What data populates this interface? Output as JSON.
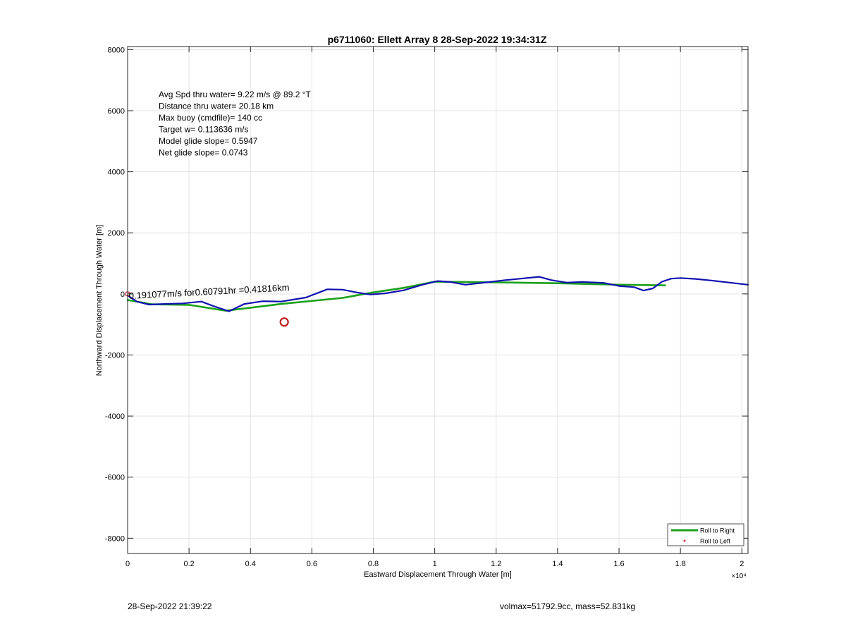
{
  "chart_data": {
    "type": "line",
    "title": "p6711060: Ellett Array 8 28-Sep-2022 19:34:31Z",
    "xlabel": "Eastward Displacement Through Water [m]",
    "ylabel": "Northward Displacement Through Water [m]",
    "xlim": [
      0,
      20200
    ],
    "ylim": [
      -8500,
      8100
    ],
    "x_exponent_label": "×10⁴",
    "x_ticks": [
      0,
      2000,
      4000,
      6000,
      8000,
      10000,
      12000,
      14000,
      16000,
      18000,
      20000
    ],
    "x_tick_labels": [
      "0",
      "0.2",
      "0.4",
      "0.6",
      "0.8",
      "1",
      "1.2",
      "1.4",
      "1.6",
      "1.8",
      "2"
    ],
    "y_ticks": [
      -8000,
      -6000,
      -4000,
      -2000,
      0,
      2000,
      4000,
      6000,
      8000
    ],
    "y_tick_labels": [
      "-8000",
      "-6000",
      "-4000",
      "-2000",
      "0",
      "2000",
      "4000",
      "6000",
      "8000"
    ],
    "grid": true,
    "legend_position": "bottom-right",
    "legend": [
      {
        "label": "Roll to Right",
        "color": "#1aa01a",
        "marker": "line"
      },
      {
        "label": "Roll to Left",
        "color": "#e01010",
        "marker": "dot"
      }
    ],
    "annotations": [
      "Avg Spd thru water=  9.22 m/s @  89.2 °T",
      "Distance thru water= 20.18 km",
      "Max buoy (cmdfile)= 140 cc",
      "Target w= 0.113636 m/s",
      "Model glide slope= 0.5947",
      "Net glide slope= 0.0743"
    ],
    "drift_label": "0.191077m/s for0.60791hr =0.41816km",
    "series": [
      {
        "name": "Roll to Right",
        "color": "#1aa01a",
        "x": [
          0,
          800,
          2000,
          3200,
          5000,
          7000,
          8000,
          9000,
          10000,
          12000,
          14000,
          16000,
          17500
        ],
        "y": [
          -200,
          -340,
          -360,
          -550,
          -330,
          -130,
          50,
          200,
          400,
          380,
          350,
          300,
          280
        ]
      },
      {
        "name": "",
        "color": "#1010b0",
        "x": [
          0,
          300,
          700,
          1200,
          1800,
          2400,
          2800,
          3300,
          3800,
          4400,
          5000,
          5800,
          6500,
          7000,
          7500,
          7900,
          8400,
          9000,
          9600,
          10100,
          10500,
          11000,
          11700,
          12300,
          12800,
          13400,
          13800,
          14300,
          14800,
          15500,
          16000,
          16500,
          16800,
          17100,
          17400,
          17700,
          18000,
          18500,
          19000,
          19600,
          20200
        ],
        "y": [
          -50,
          -250,
          -350,
          -330,
          -310,
          -250,
          -400,
          -570,
          -330,
          -240,
          -250,
          -120,
          150,
          140,
          40,
          -20,
          20,
          120,
          300,
          420,
          390,
          300,
          380,
          450,
          500,
          560,
          450,
          370,
          390,
          360,
          260,
          220,
          110,
          180,
          400,
          500,
          520,
          490,
          440,
          370,
          300
        ]
      },
      {
        "name": "",
        "color": "#c01818",
        "type": "marker",
        "x": [
          5100
        ],
        "y": [
          -920
        ]
      }
    ]
  },
  "footer": {
    "left": "28-Sep-2022 21:39:22",
    "right": "volmax=51792.9cc, mass=52.831kg"
  }
}
